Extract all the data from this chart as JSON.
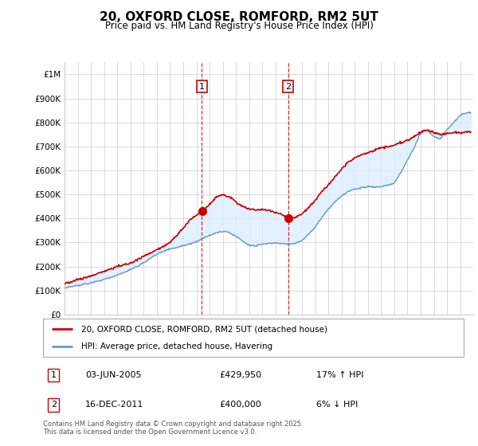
{
  "title": "20, OXFORD CLOSE, ROMFORD, RM2 5UT",
  "subtitle": "Price paid vs. HM Land Registry's House Price Index (HPI)",
  "legend_line1": "20, OXFORD CLOSE, ROMFORD, RM2 5UT (detached house)",
  "legend_line2": "HPI: Average price, detached house, Havering",
  "annotation1": {
    "label": "1",
    "date": "03-JUN-2005",
    "price": "£429,950",
    "hpi": "17% ↑ HPI",
    "x_year": 2005.42
  },
  "annotation2": {
    "label": "2",
    "date": "16-DEC-2011",
    "price": "£400,000",
    "hpi": "6% ↓ HPI",
    "x_year": 2011.96
  },
  "footer": "Contains HM Land Registry data © Crown copyright and database right 2025.\nThis data is licensed under the Open Government Licence v3.0.",
  "red_color": "#cc0000",
  "blue_color": "#6699cc",
  "blue_fill": "#ddeeff",
  "vline_color": "#cc0000",
  "ylim": [
    0,
    1050000
  ],
  "xlim_start": 1995.0,
  "xlim_end": 2025.99
}
